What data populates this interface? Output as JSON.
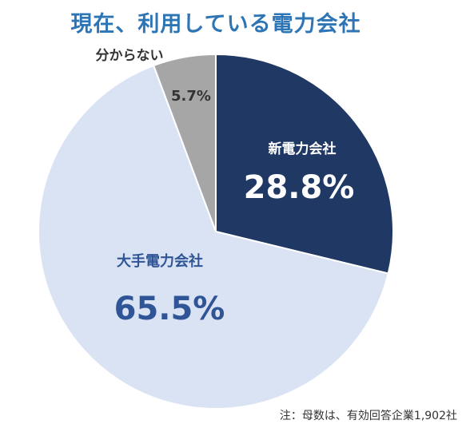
{
  "title": "現在、利用している電力会社",
  "note": "注：母数は、有効回答企業1,902社",
  "chart_data": {
    "type": "pie",
    "title": "現在、利用している電力会社",
    "slices": [
      {
        "name": "新電力会社",
        "value": 28.8,
        "value_label": "28.8%",
        "color": "#1f3864",
        "label_color": "#ffffff",
        "value_color": "#ffffff"
      },
      {
        "name": "大手電力会社",
        "value": 65.5,
        "value_label": "65.5%",
        "color": "#dae3f3",
        "label_color": "#2f5597",
        "value_color": "#2f5597"
      },
      {
        "name": "分からない",
        "value": 5.7,
        "value_label": "5.7%",
        "color": "#a6a6a6",
        "label_color": "#333333",
        "value_color": "#333333"
      }
    ],
    "start_angle_deg": 0,
    "direction": "clockwise",
    "edge_color": "#ffffff"
  }
}
